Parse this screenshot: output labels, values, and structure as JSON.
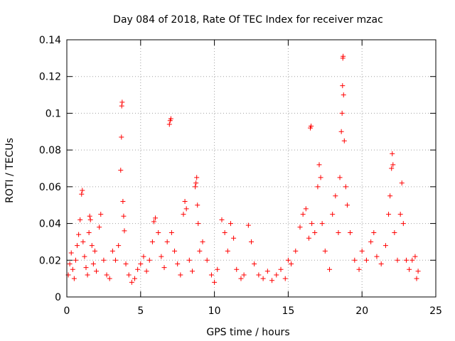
{
  "chart_data": {
    "type": "scatter",
    "title": "Day 084 of 2018, Rate Of TEC Index for receiver mzac",
    "xlabel": "GPS time / hours",
    "ylabel": "ROTI / TECUs",
    "xlim": [
      0,
      25
    ],
    "ylim": [
      0,
      0.14
    ],
    "xticks": [
      0,
      5,
      10,
      15,
      20,
      25
    ],
    "xtick_labels": [
      "0",
      "5",
      "10",
      "15",
      "20",
      "25"
    ],
    "yticks": [
      0,
      0.02,
      0.04,
      0.06,
      0.08,
      0.1,
      0.12,
      0.14
    ],
    "ytick_labels": [
      "0",
      "0.02",
      "0.04",
      "0.06",
      "0.08",
      "0.1",
      "0.12",
      "0.14"
    ],
    "grid": true,
    "marker": "plus",
    "series": [
      {
        "name": "ROTI",
        "color": "#ff0000",
        "points": [
          [
            0.1,
            0.012
          ],
          [
            0.2,
            0.018
          ],
          [
            0.3,
            0.024
          ],
          [
            0.4,
            0.015
          ],
          [
            0.5,
            0.01
          ],
          [
            0.6,
            0.02
          ],
          [
            0.7,
            0.028
          ],
          [
            0.8,
            0.034
          ],
          [
            0.9,
            0.042
          ],
          [
            1.0,
            0.056
          ],
          [
            1.05,
            0.058
          ],
          [
            1.1,
            0.03
          ],
          [
            1.2,
            0.022
          ],
          [
            1.3,
            0.016
          ],
          [
            1.4,
            0.012
          ],
          [
            1.5,
            0.035
          ],
          [
            1.55,
            0.044
          ],
          [
            1.6,
            0.042
          ],
          [
            1.7,
            0.028
          ],
          [
            1.8,
            0.018
          ],
          [
            1.9,
            0.025
          ],
          [
            2.0,
            0.014
          ],
          [
            2.2,
            0.038
          ],
          [
            2.3,
            0.045
          ],
          [
            2.5,
            0.02
          ],
          [
            2.7,
            0.012
          ],
          [
            2.9,
            0.01
          ],
          [
            3.1,
            0.025
          ],
          [
            3.3,
            0.02
          ],
          [
            3.5,
            0.028
          ],
          [
            3.65,
            0.069
          ],
          [
            3.7,
            0.087
          ],
          [
            3.72,
            0.104
          ],
          [
            3.75,
            0.106
          ],
          [
            3.8,
            0.052
          ],
          [
            3.85,
            0.044
          ],
          [
            3.9,
            0.036
          ],
          [
            4.0,
            0.018
          ],
          [
            4.2,
            0.012
          ],
          [
            4.4,
            0.008
          ],
          [
            4.6,
            0.01
          ],
          [
            4.8,
            0.015
          ],
          [
            5.0,
            0.018
          ],
          [
            5.2,
            0.022
          ],
          [
            5.4,
            0.014
          ],
          [
            5.6,
            0.02
          ],
          [
            5.8,
            0.03
          ],
          [
            5.9,
            0.041
          ],
          [
            6.0,
            0.043
          ],
          [
            6.2,
            0.035
          ],
          [
            6.4,
            0.022
          ],
          [
            6.6,
            0.016
          ],
          [
            6.8,
            0.03
          ],
          [
            6.95,
            0.094
          ],
          [
            7.0,
            0.096
          ],
          [
            7.05,
            0.097
          ],
          [
            7.1,
            0.035
          ],
          [
            7.3,
            0.025
          ],
          [
            7.5,
            0.018
          ],
          [
            7.7,
            0.012
          ],
          [
            7.9,
            0.045
          ],
          [
            8.0,
            0.052
          ],
          [
            8.1,
            0.048
          ],
          [
            8.3,
            0.02
          ],
          [
            8.5,
            0.014
          ],
          [
            8.7,
            0.06
          ],
          [
            8.75,
            0.062
          ],
          [
            8.8,
            0.065
          ],
          [
            8.85,
            0.05
          ],
          [
            8.9,
            0.04
          ],
          [
            9.0,
            0.025
          ],
          [
            9.2,
            0.03
          ],
          [
            9.5,
            0.02
          ],
          [
            9.8,
            0.012
          ],
          [
            10.0,
            0.008
          ],
          [
            10.2,
            0.015
          ],
          [
            10.5,
            0.042
          ],
          [
            10.7,
            0.035
          ],
          [
            10.9,
            0.025
          ],
          [
            11.1,
            0.04
          ],
          [
            11.3,
            0.032
          ],
          [
            11.5,
            0.015
          ],
          [
            11.8,
            0.01
          ],
          [
            12.0,
            0.012
          ],
          [
            12.3,
            0.039
          ],
          [
            12.5,
            0.03
          ],
          [
            12.7,
            0.018
          ],
          [
            13.0,
            0.012
          ],
          [
            13.3,
            0.01
          ],
          [
            13.6,
            0.014
          ],
          [
            13.9,
            0.009
          ],
          [
            14.2,
            0.012
          ],
          [
            14.5,
            0.015
          ],
          [
            14.8,
            0.01
          ],
          [
            15.0,
            0.02
          ],
          [
            15.2,
            0.018
          ],
          [
            15.5,
            0.025
          ],
          [
            15.8,
            0.038
          ],
          [
            16.0,
            0.045
          ],
          [
            16.2,
            0.048
          ],
          [
            16.4,
            0.032
          ],
          [
            16.5,
            0.092
          ],
          [
            16.55,
            0.093
          ],
          [
            16.6,
            0.04
          ],
          [
            16.8,
            0.035
          ],
          [
            17.0,
            0.06
          ],
          [
            17.1,
            0.072
          ],
          [
            17.2,
            0.065
          ],
          [
            17.3,
            0.04
          ],
          [
            17.5,
            0.025
          ],
          [
            17.8,
            0.015
          ],
          [
            18.0,
            0.045
          ],
          [
            18.2,
            0.055
          ],
          [
            18.4,
            0.035
          ],
          [
            18.5,
            0.065
          ],
          [
            18.6,
            0.09
          ],
          [
            18.65,
            0.1
          ],
          [
            18.68,
            0.115
          ],
          [
            18.7,
            0.13
          ],
          [
            18.72,
            0.131
          ],
          [
            18.75,
            0.11
          ],
          [
            18.8,
            0.085
          ],
          [
            18.9,
            0.06
          ],
          [
            19.0,
            0.05
          ],
          [
            19.2,
            0.035
          ],
          [
            19.5,
            0.02
          ],
          [
            19.8,
            0.015
          ],
          [
            20.0,
            0.025
          ],
          [
            20.3,
            0.02
          ],
          [
            20.6,
            0.03
          ],
          [
            20.8,
            0.035
          ],
          [
            21.0,
            0.022
          ],
          [
            21.3,
            0.018
          ],
          [
            21.6,
            0.028
          ],
          [
            21.8,
            0.045
          ],
          [
            21.9,
            0.055
          ],
          [
            22.0,
            0.07
          ],
          [
            22.05,
            0.078
          ],
          [
            22.1,
            0.072
          ],
          [
            22.2,
            0.035
          ],
          [
            22.4,
            0.02
          ],
          [
            22.6,
            0.045
          ],
          [
            22.7,
            0.062
          ],
          [
            22.8,
            0.04
          ],
          [
            23.0,
            0.02
          ],
          [
            23.2,
            0.015
          ],
          [
            23.4,
            0.02
          ],
          [
            23.6,
            0.022
          ],
          [
            23.7,
            0.01
          ],
          [
            23.8,
            0.014
          ]
        ]
      }
    ]
  }
}
